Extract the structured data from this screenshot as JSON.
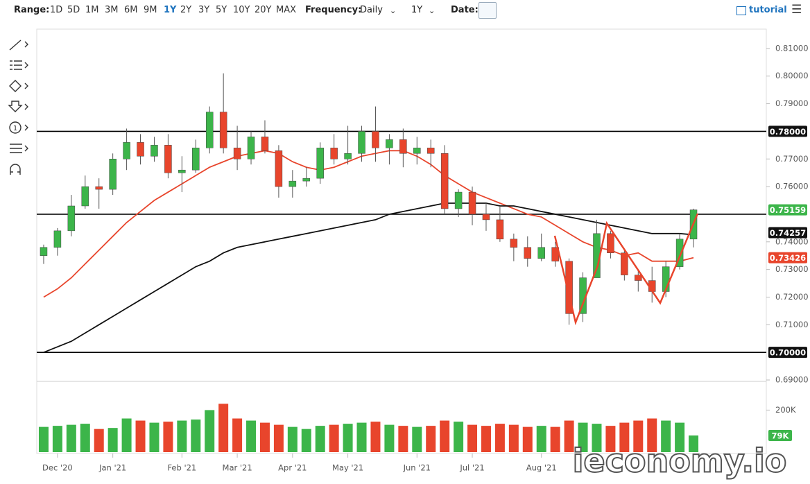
{
  "toolbar": {
    "range_label": "Range:",
    "ranges": [
      "1D",
      "5D",
      "1M",
      "3M",
      "6M",
      "9M",
      "1Y",
      "2Y",
      "3Y",
      "5Y",
      "10Y",
      "20Y",
      "MAX"
    ],
    "frequency_label": "Frequency:",
    "frequency": "Daily",
    "period": "1Y",
    "date_label": "Date:",
    "tutorial": "tutorial"
  },
  "watermark": "ieconomy.io",
  "chart_data": [
    {
      "type": "candlestick",
      "up_color": "#3cb54a",
      "down_color": "#e8452c",
      "categories": [
        null,
        "Dec '20",
        null,
        null,
        null,
        "Jan '21",
        null,
        null,
        null,
        null,
        "Feb '21",
        null,
        null,
        null,
        "Mar '21",
        null,
        null,
        null,
        "Apr '21",
        null,
        null,
        null,
        "May '21",
        null,
        null,
        null,
        null,
        "Jun '21",
        null,
        null,
        null,
        "Jul '21",
        null,
        null,
        null,
        null,
        "Aug '21",
        null,
        null,
        null,
        null,
        null,
        null,
        null,
        null,
        null,
        null,
        null
      ],
      "open": [
        0.735,
        0.738,
        0.744,
        0.753,
        0.76,
        0.759,
        0.77,
        0.776,
        0.771,
        0.775,
        0.765,
        0.766,
        0.774,
        0.787,
        0.774,
        0.77,
        0.778,
        0.773,
        0.76,
        0.762,
        0.763,
        0.774,
        0.77,
        0.772,
        0.78,
        0.774,
        0.777,
        0.772,
        0.774,
        0.772,
        0.752,
        0.758,
        0.75,
        0.748,
        0.741,
        0.738,
        0.734,
        0.738,
        0.733,
        0.714,
        0.727,
        0.743,
        0.736,
        0.728,
        0.726,
        0.722,
        0.731,
        0.741
      ],
      "high": [
        0.739,
        0.745,
        0.757,
        0.764,
        0.763,
        0.772,
        0.781,
        0.779,
        0.778,
        0.779,
        0.771,
        0.777,
        0.789,
        0.801,
        0.782,
        0.78,
        0.784,
        0.775,
        0.766,
        0.767,
        0.776,
        0.779,
        0.782,
        0.782,
        0.789,
        0.779,
        0.781,
        0.778,
        0.777,
        0.775,
        0.759,
        0.76,
        0.754,
        0.753,
        0.743,
        0.742,
        0.743,
        0.74,
        0.734,
        0.729,
        0.748,
        0.744,
        0.737,
        0.73,
        0.731,
        0.733,
        0.743,
        0.752
      ],
      "low": [
        0.732,
        0.735,
        0.742,
        0.752,
        0.752,
        0.757,
        0.766,
        0.768,
        0.769,
        0.763,
        0.758,
        0.765,
        0.772,
        0.772,
        0.766,
        0.768,
        0.772,
        0.756,
        0.756,
        0.76,
        0.761,
        0.768,
        0.768,
        0.769,
        0.769,
        0.768,
        0.767,
        0.768,
        0.767,
        0.75,
        0.749,
        0.746,
        0.744,
        0.74,
        0.733,
        0.731,
        0.733,
        0.731,
        0.71,
        0.711,
        0.727,
        0.734,
        0.726,
        0.722,
        0.718,
        0.72,
        0.73,
        0.738
      ],
      "close": [
        0.738,
        0.744,
        0.753,
        0.76,
        0.759,
        0.77,
        0.776,
        0.771,
        0.775,
        0.765,
        0.766,
        0.774,
        0.787,
        0.774,
        0.77,
        0.778,
        0.773,
        0.76,
        0.762,
        0.763,
        0.774,
        0.77,
        0.772,
        0.78,
        0.774,
        0.777,
        0.772,
        0.774,
        0.772,
        0.752,
        0.758,
        0.75,
        0.748,
        0.741,
        0.738,
        0.734,
        0.738,
        0.733,
        0.714,
        0.727,
        0.743,
        0.736,
        0.728,
        0.726,
        0.722,
        0.731,
        0.741,
        0.75159
      ],
      "series": [
        {
          "color": "#e8452c",
          "values": [
            0.72,
            0.723,
            0.727,
            0.732,
            0.737,
            0.742,
            0.747,
            0.751,
            0.755,
            0.758,
            0.761,
            0.764,
            0.767,
            0.769,
            0.771,
            0.772,
            0.773,
            0.772,
            0.769,
            0.767,
            0.766,
            0.767,
            0.769,
            0.771,
            0.772,
            0.773,
            0.773,
            0.771,
            0.768,
            0.764,
            0.761,
            0.758,
            0.756,
            0.754,
            0.752,
            0.75,
            0.749,
            0.746,
            0.743,
            0.74,
            0.738,
            0.737,
            0.735,
            0.736,
            0.733,
            0.733,
            0.733,
            0.73426
          ]
        },
        {
          "color": "#111111",
          "values": [
            0.7,
            0.702,
            0.704,
            0.707,
            0.71,
            0.713,
            0.716,
            0.719,
            0.722,
            0.725,
            0.728,
            0.731,
            0.733,
            0.736,
            0.738,
            0.739,
            0.74,
            0.741,
            0.742,
            0.743,
            0.744,
            0.745,
            0.746,
            0.747,
            0.748,
            0.75,
            0.751,
            0.752,
            0.753,
            0.754,
            0.754,
            0.754,
            0.754,
            0.753,
            0.753,
            0.752,
            0.751,
            0.75,
            0.749,
            0.748,
            0.747,
            0.746,
            0.745,
            0.744,
            0.743,
            0.743,
            0.743,
            0.74257
          ]
        }
      ],
      "hlines": [
        {
          "value": 0.78,
          "label": "0.78000"
        },
        0.75,
        {
          "value": 0.7,
          "label": "0.70000"
        }
      ],
      "ylim": [
        0.69,
        0.817
      ],
      "yticks": [
        {
          "value": 0.69,
          "label": "0.69000"
        },
        {
          "value": 0.71,
          "label": "0.71000"
        },
        {
          "value": 0.72,
          "label": "0.72000"
        },
        {
          "value": 0.73,
          "label": "0.73000"
        },
        {
          "value": 0.74,
          "label": "0.74000"
        },
        {
          "value": 0.76,
          "label": "0.76000"
        },
        {
          "value": 0.77,
          "label": "0.77000"
        },
        {
          "value": 0.79,
          "label": "0.79000"
        },
        {
          "value": 0.8,
          "label": "0.80000"
        },
        {
          "value": 0.81,
          "label": "0.81000"
        }
      ]
    },
    {
      "type": "bar",
      "values": [
        120000,
        125000,
        130000,
        135000,
        110000,
        115000,
        160000,
        150000,
        140000,
        145000,
        150000,
        155000,
        200000,
        230000,
        160000,
        150000,
        140000,
        130000,
        120000,
        110000,
        125000,
        130000,
        135000,
        140000,
        145000,
        130000,
        125000,
        120000,
        125000,
        150000,
        145000,
        130000,
        125000,
        135000,
        130000,
        120000,
        125000,
        120000,
        150000,
        140000,
        135000,
        125000,
        140000,
        150000,
        160000,
        150000,
        140000,
        79000
      ],
      "colors": [
        "#3cb54a",
        "#3cb54a",
        "#3cb54a",
        "#3cb54a",
        "#e8452c",
        "#3cb54a",
        "#3cb54a",
        "#e8452c",
        "#3cb54a",
        "#e8452c",
        "#3cb54a",
        "#3cb54a",
        "#3cb54a",
        "#e8452c",
        "#e8452c",
        "#3cb54a",
        "#e8452c",
        "#e8452c",
        "#3cb54a",
        "#3cb54a",
        "#3cb54a",
        "#e8452c",
        "#3cb54a",
        "#3cb54a",
        "#e8452c",
        "#3cb54a",
        "#e8452c",
        "#3cb54a",
        "#e8452c",
        "#e8452c",
        "#3cb54a",
        "#e8452c",
        "#e8452c",
        "#e8452c",
        "#e8452c",
        "#e8452c",
        "#3cb54a",
        "#e8452c",
        "#e8452c",
        "#3cb54a",
        "#3cb54a",
        "#e8452c",
        "#e8452c",
        "#e8452c",
        "#e8452c",
        "#3cb54a",
        "#3cb54a",
        "#3cb54a"
      ],
      "last_label": {
        "value": 79000,
        "label": "79K"
      },
      "ylim": [
        0,
        330000
      ],
      "yticks": [
        {
          "value": 200000,
          "label": "200K"
        }
      ]
    }
  ]
}
